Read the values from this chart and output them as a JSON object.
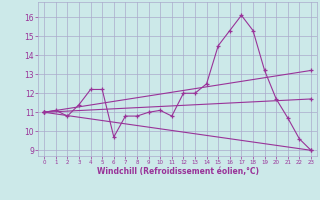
{
  "background_color": "#cce9e9",
  "line_color": "#993399",
  "grid_color": "#aaaacc",
  "xlabel": "Windchill (Refroidissement éolien,°C)",
  "xlabel_color": "#993399",
  "xlim": [
    -0.5,
    23.5
  ],
  "ylim": [
    8.7,
    16.8
  ],
  "yticks": [
    9,
    10,
    11,
    12,
    13,
    14,
    15,
    16
  ],
  "xticks": [
    0,
    1,
    2,
    3,
    4,
    5,
    6,
    7,
    8,
    9,
    10,
    11,
    12,
    13,
    14,
    15,
    16,
    17,
    18,
    19,
    20,
    21,
    22,
    23
  ],
  "curve1_x": [
    0,
    1,
    2,
    3,
    4,
    5,
    6,
    7,
    8,
    9,
    10,
    11,
    12,
    13,
    14,
    15,
    16,
    17,
    18,
    19,
    20,
    21,
    22,
    23
  ],
  "curve1_y": [
    11.0,
    11.1,
    10.8,
    11.4,
    12.2,
    12.2,
    9.7,
    10.8,
    10.8,
    11.0,
    11.1,
    10.8,
    12.0,
    12.0,
    12.5,
    14.5,
    15.3,
    16.1,
    15.3,
    13.2,
    11.7,
    10.7,
    9.6,
    9.0
  ],
  "curve2_x": [
    0,
    23
  ],
  "curve2_y": [
    11.0,
    9.0
  ],
  "curve3_x": [
    0,
    23
  ],
  "curve3_y": [
    11.0,
    13.2
  ],
  "curve4_x": [
    0,
    23
  ],
  "curve4_y": [
    11.0,
    11.7
  ]
}
